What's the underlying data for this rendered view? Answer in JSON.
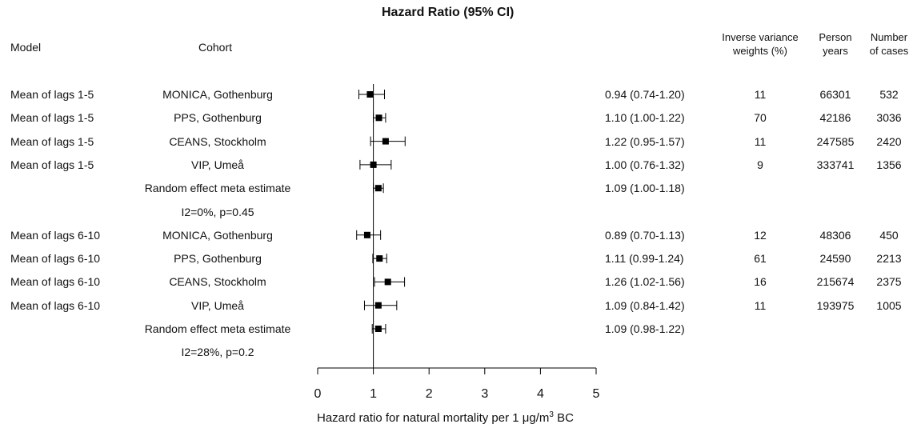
{
  "chart_data": {
    "type": "forest",
    "title": "Hazard Ratio (95% CI)",
    "columns": {
      "model": "Model",
      "cohort": "Cohort",
      "weights": [
        "Inverse variance",
        "weights (%)"
      ],
      "person_years": [
        "Person",
        "years"
      ],
      "cases": [
        "Number",
        "of cases"
      ]
    },
    "rows": [
      {
        "model": "Mean of lags 1-5",
        "cohort": "MONICA, Gothenburg",
        "hr": 0.94,
        "lo": 0.74,
        "hi": 1.2,
        "ci_text": "0.94 (0.74-1.20)",
        "weight": "11",
        "person_years": "66301",
        "cases": "532"
      },
      {
        "model": "Mean of lags 1-5",
        "cohort": "PPS, Gothenburg",
        "hr": 1.1,
        "lo": 1.0,
        "hi": 1.22,
        "ci_text": "1.10 (1.00-1.22)",
        "weight": "70",
        "person_years": "42186",
        "cases": "3036"
      },
      {
        "model": "Mean of lags 1-5",
        "cohort": "CEANS, Stockholm",
        "hr": 1.22,
        "lo": 0.95,
        "hi": 1.57,
        "ci_text": "1.22 (0.95-1.57)",
        "weight": "11",
        "person_years": "247585",
        "cases": "2420"
      },
      {
        "model": "Mean of lags 1-5",
        "cohort": "VIP, Umeå",
        "hr": 1.0,
        "lo": 0.76,
        "hi": 1.32,
        "ci_text": "1.00 (0.76-1.32)",
        "weight": "9",
        "person_years": "333741",
        "cases": "1356"
      },
      {
        "model": "",
        "cohort": "Random effect meta estimate",
        "hr": 1.09,
        "lo": 1.0,
        "hi": 1.18,
        "ci_text": "1.09 (1.00-1.18)",
        "weight": "",
        "person_years": "",
        "cases": ""
      },
      {
        "model": "",
        "cohort": "I2=0%, p=0.45",
        "hr": null,
        "lo": null,
        "hi": null,
        "ci_text": "",
        "weight": "",
        "person_years": "",
        "cases": ""
      },
      {
        "model": "Mean of lags 6-10",
        "cohort": "MONICA, Gothenburg",
        "hr": 0.89,
        "lo": 0.7,
        "hi": 1.13,
        "ci_text": "0.89 (0.70-1.13)",
        "weight": "12",
        "person_years": "48306",
        "cases": "450"
      },
      {
        "model": "Mean of lags 6-10",
        "cohort": "PPS, Gothenburg",
        "hr": 1.11,
        "lo": 0.99,
        "hi": 1.24,
        "ci_text": "1.11 (0.99-1.24)",
        "weight": "61",
        "person_years": "24590",
        "cases": "2213"
      },
      {
        "model": "Mean of lags 6-10",
        "cohort": "CEANS, Stockholm",
        "hr": 1.26,
        "lo": 1.02,
        "hi": 1.56,
        "ci_text": "1.26 (1.02-1.56)",
        "weight": "16",
        "person_years": "215674",
        "cases": "2375"
      },
      {
        "model": "Mean of lags 6-10",
        "cohort": "VIP, Umeå",
        "hr": 1.09,
        "lo": 0.84,
        "hi": 1.42,
        "ci_text": "1.09 (0.84-1.42)",
        "weight": "11",
        "person_years": "193975",
        "cases": "1005"
      },
      {
        "model": "",
        "cohort": "Random effect meta estimate",
        "hr": 1.09,
        "lo": 0.98,
        "hi": 1.22,
        "ci_text": "1.09 (0.98-1.22)",
        "weight": "",
        "person_years": "",
        "cases": ""
      },
      {
        "model": "",
        "cohort": "I2=28%, p=0.2",
        "hr": null,
        "lo": null,
        "hi": null,
        "ci_text": "",
        "weight": "",
        "person_years": "",
        "cases": ""
      }
    ],
    "reference_line": 1,
    "xlim": [
      0,
      5
    ],
    "xticks": [
      0,
      1,
      2,
      3,
      4,
      5
    ],
    "xlabel": "Hazard ratio for natural mortality per 1 μg/m",
    "xlabel_sup": "3",
    "xlabel_suffix": " BC",
    "marker_color": "#000000"
  }
}
